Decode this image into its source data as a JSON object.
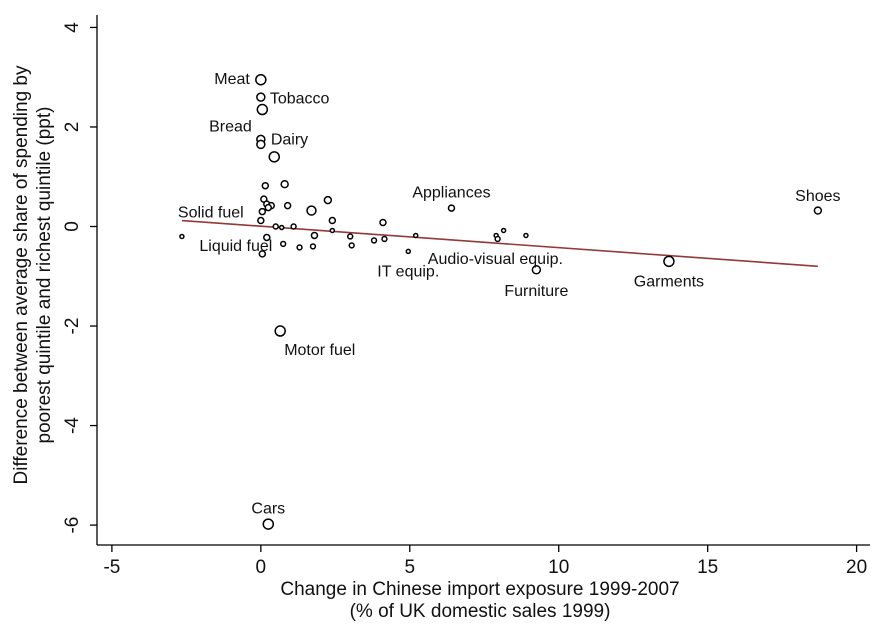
{
  "chart_data": {
    "type": "scatter",
    "xlabel": [
      "Change in Chinese import exposure 1999-2007",
      "(% of UK domestic sales 1999)"
    ],
    "ylabel": [
      "Difference between average share of spending by",
      "poorest quintile and richest quintile (ppt)"
    ],
    "x": [
      0,
      0,
      0.05,
      0,
      0,
      0.45,
      0.15,
      0.8,
      0.1,
      0.2,
      0.35,
      0.25,
      0.05,
      0.9,
      1.7,
      2.25,
      2.4,
      0,
      0.5,
      0.7,
      1.1,
      -2.65,
      0.2,
      0.05,
      0.75,
      1.3,
      1.75,
      1.8,
      2.4,
      3.0,
      3.05,
      3.8,
      4.1,
      4.15,
      4.95,
      5.2,
      6.4,
      7.9,
      7.95,
      8.15,
      8.9,
      9.25,
      13.7,
      18.7,
      0.65,
      0.25
    ],
    "values": [
      2.95,
      2.6,
      2.35,
      1.75,
      1.65,
      1.4,
      0.82,
      0.85,
      0.55,
      0.45,
      0.42,
      0.38,
      0.3,
      0.42,
      0.32,
      0.53,
      0.12,
      0.12,
      0.0,
      -0.02,
      0.0,
      -0.2,
      -0.22,
      -0.55,
      -0.35,
      -0.42,
      -0.4,
      -0.18,
      -0.08,
      -0.2,
      -0.38,
      -0.28,
      0.08,
      -0.25,
      -0.5,
      -0.18,
      0.37,
      -0.18,
      -0.25,
      -0.08,
      -0.18,
      -0.87,
      -0.7,
      0.32,
      -2.1,
      -5.98
    ],
    "sizes": [
      25,
      16,
      25,
      16,
      16,
      25,
      9,
      12,
      9,
      9,
      9,
      9,
      9,
      9,
      20,
      12,
      9,
      9,
      6,
      4,
      6,
      4,
      9,
      9,
      6,
      6,
      6,
      9,
      4,
      6,
      6,
      6,
      9,
      6,
      4,
      4,
      9,
      4,
      6,
      4,
      4,
      16,
      25,
      12,
      25,
      25
    ],
    "labels": [
      "Meat",
      "Tobacco",
      null,
      "Bread",
      "Dairy",
      null,
      null,
      null,
      null,
      null,
      null,
      null,
      null,
      null,
      null,
      null,
      null,
      null,
      null,
      null,
      null,
      "Solid fuel",
      null,
      "Liquid fuel",
      null,
      null,
      null,
      null,
      null,
      null,
      null,
      null,
      null,
      null,
      "IT equip.",
      null,
      "Appliances",
      null,
      null,
      null,
      null,
      "Furniture",
      "Garments",
      "Shoes",
      "Motor fuel",
      "Cars"
    ],
    "annotations": [
      "Audio-visual equip."
    ],
    "fit": {
      "x": [
        -2.65,
        18.7
      ],
      "values": [
        0.12,
        -0.8
      ],
      "color": "#943838"
    },
    "xlim": [
      -5.5,
      20.45
    ],
    "xticks": [
      -5,
      0,
      5,
      10,
      15,
      20
    ],
    "ylim": [
      -6.4,
      4.25
    ],
    "yticks": [
      -6,
      -4,
      -2,
      0,
      2,
      4
    ]
  }
}
